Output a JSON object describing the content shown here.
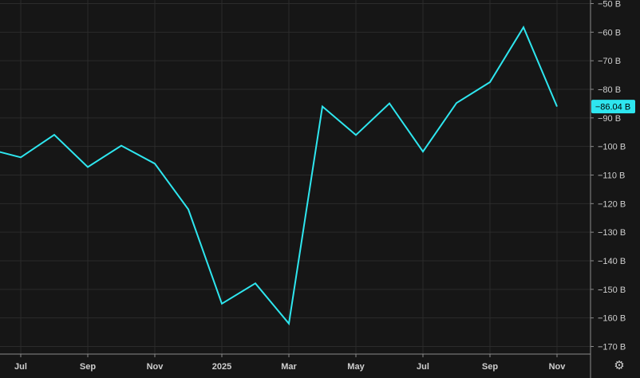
{
  "chart_data": {
    "type": "line",
    "x_labels": [
      "Jul",
      "Sep",
      "Nov",
      "2025",
      "Mar",
      "May",
      "Jul",
      "Sep",
      "Nov"
    ],
    "y_ticks": [
      "−50 B",
      "−60 B",
      "−70 B",
      "−80 B",
      "−90 B",
      "−100 B",
      "−110 B",
      "−120 B",
      "−130 B",
      "−140 B",
      "−150 B",
      "−160 B",
      "−170 B"
    ],
    "ylim": [
      -172,
      -48
    ],
    "series": [
      {
        "color": "#2ee6ef",
        "points": [
          {
            "x": 0,
            "y": -100.8
          },
          {
            "x": 1,
            "y": -103.8
          },
          {
            "x": 2,
            "y": -95.9
          },
          {
            "x": 3,
            "y": -107.2
          },
          {
            "x": 4,
            "y": -99.7
          },
          {
            "x": 5,
            "y": -106.0
          },
          {
            "x": 6,
            "y": -122.0
          },
          {
            "x": 7,
            "y": -155.0
          },
          {
            "x": 8,
            "y": -147.9
          },
          {
            "x": 9,
            "y": -162.0
          },
          {
            "x": 10,
            "y": -86.0
          },
          {
            "x": 11,
            "y": -96.0
          },
          {
            "x": 12,
            "y": -84.9
          },
          {
            "x": 13,
            "y": -101.8
          },
          {
            "x": 14,
            "y": -84.8
          },
          {
            "x": 15,
            "y": -77.5
          },
          {
            "x": 16,
            "y": -58.3
          },
          {
            "x": 17,
            "y": -86.04
          }
        ]
      }
    ],
    "last_value_label": "−86.04 B",
    "grid": true,
    "colors": {
      "background": "#161616",
      "grid": "#2b2b2b",
      "line": "#2ee6ef",
      "axis": "#cfcfcf",
      "label_bg": "#2ee6ef",
      "label_text": "#000000"
    }
  },
  "controls": {
    "settings_icon": "⚙"
  }
}
